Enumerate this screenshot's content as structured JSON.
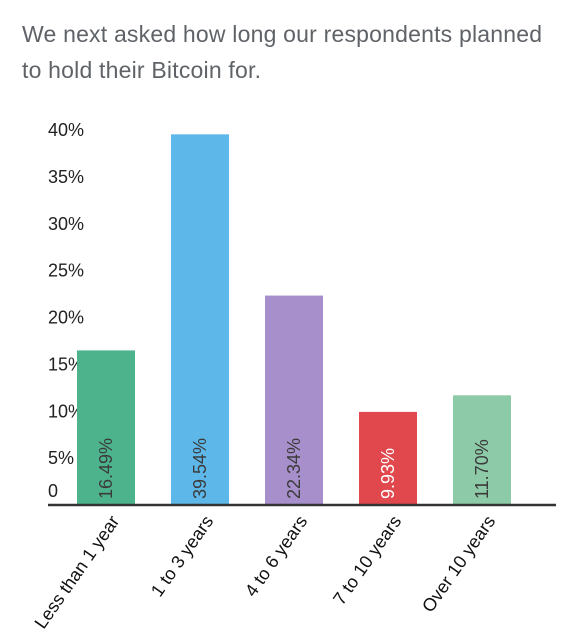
{
  "intro_text": "We next asked how long our respondents planned to hold their Bitcoin for.",
  "chart_data": {
    "type": "bar",
    "categories": [
      "Less than 1 year",
      "1 to 3 years",
      "4 to 6 years",
      "7 to 10 years",
      "Over 10 years"
    ],
    "values": [
      16.49,
      39.54,
      22.34,
      9.93,
      11.7
    ],
    "data_labels": [
      "16.49%",
      "39.54%",
      "22.34%",
      "9.93%",
      "11.70%"
    ],
    "bar_colors": [
      "#4cb38d",
      "#5db7e8",
      "#a78fcb",
      "#e0484e",
      "#8dcaa7"
    ],
    "data_label_colors": [
      "#3b3b3b",
      "#3b3b3b",
      "#3b3b3b",
      "#ffffff",
      "#3b3b3b"
    ],
    "yticks": [
      0,
      5,
      10,
      15,
      20,
      25,
      30,
      35,
      40
    ],
    "ytick_labels": [
      "0",
      "5%",
      "10%",
      "15%",
      "20%",
      "25%",
      "30%",
      "35%",
      "40%"
    ],
    "ylim": [
      0,
      40
    ],
    "grid": false,
    "legend": "none",
    "title": "",
    "xlabel": "",
    "ylabel": ""
  }
}
